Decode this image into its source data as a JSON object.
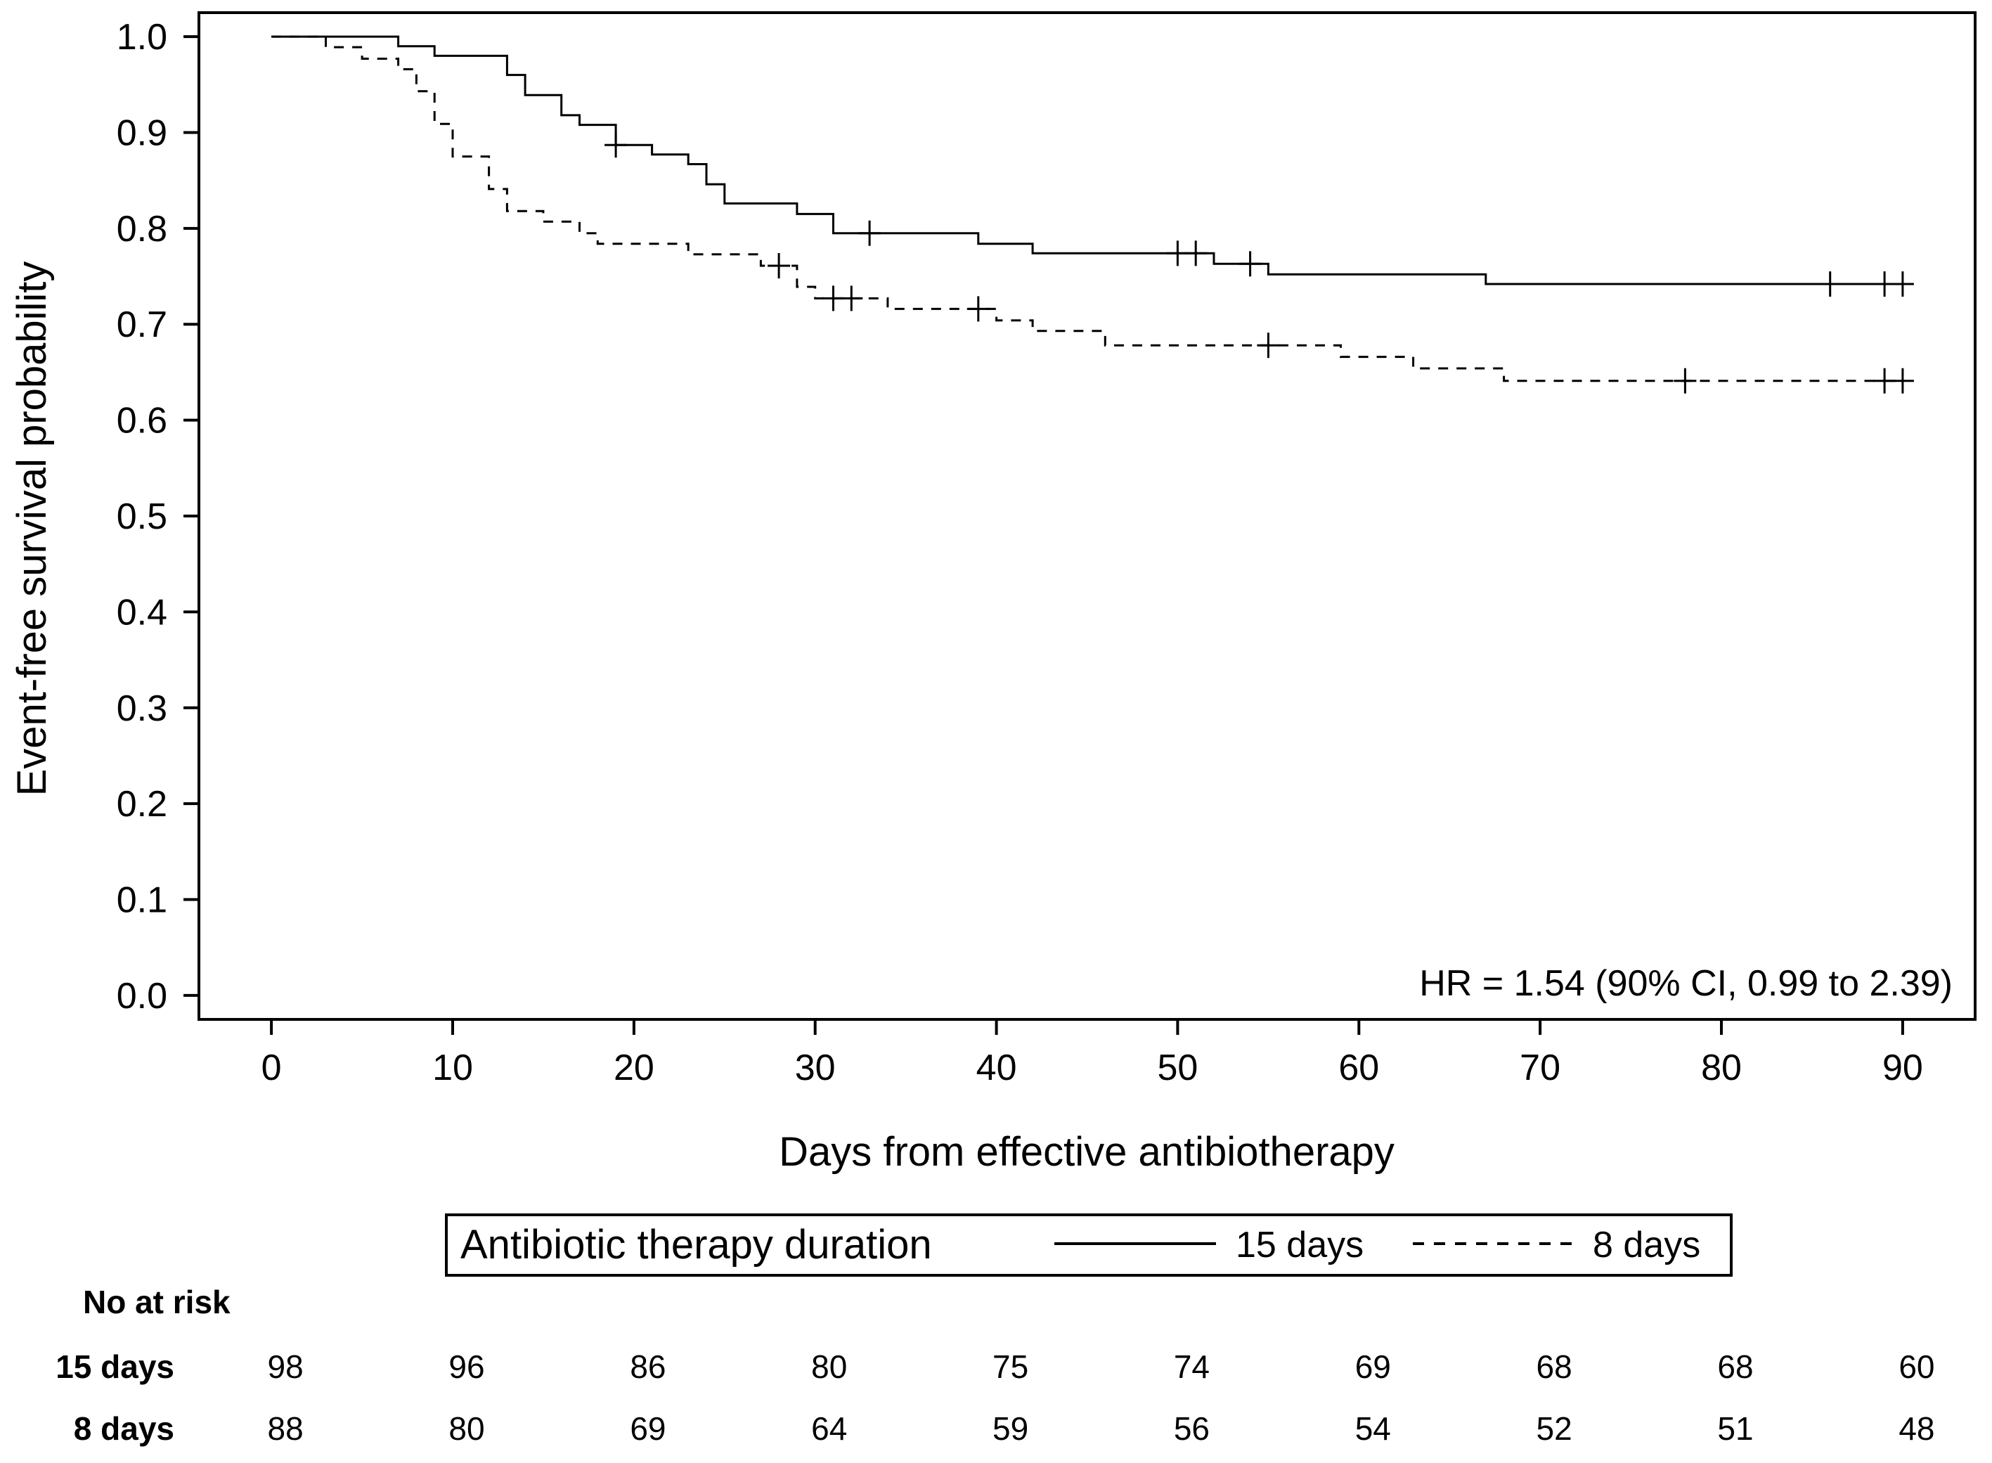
{
  "chart_data": {
    "type": "line",
    "subtype": "kaplan-meier",
    "title": "",
    "xlabel": "Days from effective antibiotherapy",
    "ylabel": "Event-free survival probability",
    "xlim": [
      -4,
      94
    ],
    "ylim": [
      -0.025,
      1.025
    ],
    "x_ticks": [
      0,
      10,
      20,
      30,
      40,
      50,
      60,
      70,
      80,
      90
    ],
    "y_ticks": [
      0.0,
      0.1,
      0.2,
      0.3,
      0.4,
      0.5,
      0.6,
      0.7,
      0.8,
      0.9,
      1.0
    ],
    "y_tick_labels": [
      "0.0",
      "0.1",
      "0.2",
      "0.3",
      "0.4",
      "0.5",
      "0.6",
      "0.7",
      "0.8",
      "0.9",
      "1.0"
    ],
    "grid": false,
    "annotation": "HR = 1.54 (90% CI, 0.99 to 2.39)",
    "legend": {
      "title": "Antibiotic therapy duration",
      "placement": "below-plot",
      "entries": [
        "15 days",
        "8 days"
      ]
    },
    "series": [
      {
        "name": "15 days",
        "line_style": "solid",
        "steps": [
          [
            0,
            1.0
          ],
          [
            7,
            0.99
          ],
          [
            9,
            0.98
          ],
          [
            13,
            0.96
          ],
          [
            14,
            0.939
          ],
          [
            16,
            0.918
          ],
          [
            17,
            0.908
          ],
          [
            19,
            0.887
          ],
          [
            21,
            0.877
          ],
          [
            23,
            0.867
          ],
          [
            24,
            0.846
          ],
          [
            25,
            0.826
          ],
          [
            29,
            0.815
          ],
          [
            31,
            0.795
          ],
          [
            39,
            0.784
          ],
          [
            42,
            0.774
          ],
          [
            52,
            0.763
          ],
          [
            55,
            0.752
          ],
          [
            67,
            0.742
          ]
        ],
        "censored": [
          19,
          33,
          50,
          51,
          54,
          86,
          89,
          90
        ],
        "end_x": 90
      },
      {
        "name": "8 days",
        "line_style": "dashed",
        "steps": [
          [
            0,
            1.0
          ],
          [
            3,
            0.989
          ],
          [
            5,
            0.977
          ],
          [
            7,
            0.966
          ],
          [
            8,
            0.943
          ],
          [
            9,
            0.909
          ],
          [
            10,
            0.875
          ],
          [
            12,
            0.841
          ],
          [
            13,
            0.818
          ],
          [
            15,
            0.807
          ],
          [
            17,
            0.795
          ],
          [
            18,
            0.784
          ],
          [
            23,
            0.773
          ],
          [
            27,
            0.761
          ],
          [
            29,
            0.739
          ],
          [
            30,
            0.727
          ],
          [
            34,
            0.716
          ],
          [
            40,
            0.704
          ],
          [
            42,
            0.693
          ],
          [
            46,
            0.678
          ],
          [
            59,
            0.666
          ],
          [
            63,
            0.654
          ],
          [
            68,
            0.641
          ]
        ],
        "censored": [
          28,
          31,
          32,
          39,
          55,
          78,
          89,
          90
        ],
        "end_x": 90
      }
    ],
    "risk_table": {
      "title": "No at risk",
      "times": [
        0,
        10,
        20,
        30,
        40,
        50,
        60,
        70,
        80,
        90
      ],
      "rows": [
        {
          "label": "15 days",
          "values": [
            "98",
            "96",
            "86",
            "80",
            "75",
            "74",
            "69",
            "68",
            "68",
            "60"
          ]
        },
        {
          "label": "8 days",
          "values": [
            "88",
            "80",
            "69",
            "64",
            "59",
            "56",
            "54",
            "52",
            "51",
            "48"
          ]
        }
      ]
    }
  }
}
